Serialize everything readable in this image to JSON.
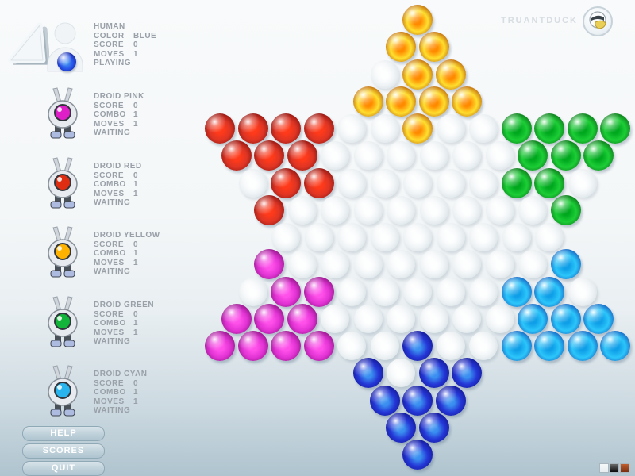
{
  "brand": {
    "name": "TRUANTDUCK"
  },
  "players": [
    {
      "name": "HUMAN",
      "kind": "human",
      "piece_hex": "#2753ea",
      "stats": [
        {
          "label": "COLOR",
          "value": "BLUE"
        },
        {
          "label": "SCORE",
          "value": "0"
        },
        {
          "label": "MOVES",
          "value": "1"
        }
      ],
      "status": "PLAYING"
    },
    {
      "name": "DROID PINK",
      "kind": "droid",
      "piece_hex": "#de1fc8",
      "stats": [
        {
          "label": "SCORE",
          "value": "0"
        },
        {
          "label": "COMBO",
          "value": "1"
        },
        {
          "label": "MOVES",
          "value": "1"
        }
      ],
      "status": "WAITING"
    },
    {
      "name": "DROID RED",
      "kind": "droid",
      "piece_hex": "#df2d12",
      "stats": [
        {
          "label": "SCORE",
          "value": "0"
        },
        {
          "label": "COMBO",
          "value": "1"
        },
        {
          "label": "MOVES",
          "value": "1"
        }
      ],
      "status": "WAITING"
    },
    {
      "name": "DROID YELLOW",
      "kind": "droid",
      "piece_hex": "#ffb300",
      "stats": [
        {
          "label": "SCORE",
          "value": "0"
        },
        {
          "label": "COMBO",
          "value": "1"
        },
        {
          "label": "MOVES",
          "value": "1"
        }
      ],
      "status": "WAITING"
    },
    {
      "name": "DROID GREEN",
      "kind": "droid",
      "piece_hex": "#12b53a",
      "stats": [
        {
          "label": "SCORE",
          "value": "0"
        },
        {
          "label": "COMBO",
          "value": "1"
        },
        {
          "label": "MOVES",
          "value": "1"
        }
      ],
      "status": "WAITING"
    },
    {
      "name": "DROID CYAN",
      "kind": "droid",
      "piece_hex": "#2ab4ee",
      "stats": [
        {
          "label": "SCORE",
          "value": "0"
        },
        {
          "label": "COMBO",
          "value": "1"
        },
        {
          "label": "MOVES",
          "value": "1"
        }
      ],
      "status": "WAITING"
    }
  ],
  "menu_buttons": [
    {
      "label": "HELP"
    },
    {
      "label": "SCORES"
    },
    {
      "label": "QUIT"
    }
  ],
  "board": {
    "rows": [
      "Y",
      "YY",
      ".YY",
      "YYYY",
      "RRRR..Y..GGGG",
      "RRR......GGG",
      ".RR.....GG.",
      "R........G",
      ".........",
      "M........C",
      ".MM.....CC.",
      "MMM......CCC",
      "MMMM..B..CCCC",
      "B.BB",
      "BBB",
      "BB",
      "B"
    ],
    "palette": {
      "Y": {
        "name": "yellow",
        "rim": "#a03000",
        "body": "#ffdf2e",
        "center": "#ff8a00"
      },
      "R": {
        "name": "red",
        "rim": "#6e0a0a",
        "body": "#de3524",
        "center": "#ff3a1a"
      },
      "G": {
        "name": "green",
        "rim": "#07500f",
        "body": "#1cce36",
        "center": "#00a81e"
      },
      "M": {
        "name": "magenta",
        "rim": "#6e0a66",
        "body": "#e233d4",
        "center": "#ff50ea"
      },
      "C": {
        "name": "cyan",
        "rim": "#0c34a8",
        "body": "#2cc6fa",
        "center": "#0f9fe8"
      },
      "B": {
        "name": "blue",
        "rim": "#0d0d7a",
        "body": "#2436d6",
        "center": "#3a8ff0"
      },
      ".": {
        "name": "empty",
        "rim": "#cdd8dd",
        "body": "#e9eff2",
        "center": "#fbfdfe"
      }
    }
  },
  "status_swatches": [
    {
      "top": "#f6f9fa",
      "bottom": "#e7edf0"
    },
    {
      "top": "#6a6a6a",
      "bottom": "#0b0b0b"
    },
    {
      "top": "#c05e2e",
      "bottom": "#7a3010"
    }
  ]
}
